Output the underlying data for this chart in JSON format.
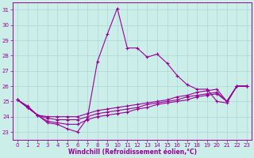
{
  "xlabel": "Windchill (Refroidissement éolien,°C)",
  "background_color": "#cceee8",
  "line_color": "#990099",
  "grid_color": "#aad8d8",
  "xlim": [
    -0.5,
    23.5
  ],
  "ylim": [
    22.5,
    31.5
  ],
  "yticks": [
    23,
    24,
    25,
    26,
    27,
    28,
    29,
    30,
    31
  ],
  "xticks": [
    0,
    1,
    2,
    3,
    4,
    5,
    6,
    7,
    8,
    9,
    10,
    11,
    12,
    13,
    14,
    15,
    16,
    17,
    18,
    19,
    20,
    21,
    22,
    23
  ],
  "series": [
    [
      25.1,
      24.7,
      24.1,
      23.6,
      23.5,
      23.2,
      23.0,
      23.9,
      27.6,
      29.4,
      31.1,
      28.5,
      28.5,
      27.9,
      28.1,
      27.5,
      26.7,
      26.1,
      25.8,
      25.8,
      25.0,
      24.9,
      26.0,
      26.0
    ],
    [
      25.1,
      24.6,
      24.1,
      24.0,
      24.0,
      24.0,
      24.0,
      24.2,
      24.4,
      24.5,
      24.6,
      24.7,
      24.8,
      24.9,
      25.0,
      25.1,
      25.3,
      25.4,
      25.6,
      25.7,
      25.8,
      25.0,
      26.0,
      26.0
    ],
    [
      25.1,
      24.6,
      24.1,
      23.9,
      23.8,
      23.8,
      23.8,
      24.0,
      24.2,
      24.3,
      24.4,
      24.5,
      24.6,
      24.8,
      24.9,
      25.0,
      25.1,
      25.3,
      25.4,
      25.5,
      25.6,
      25.0,
      26.0,
      26.0
    ],
    [
      25.1,
      24.6,
      24.1,
      23.7,
      23.6,
      23.5,
      23.5,
      23.8,
      24.0,
      24.1,
      24.2,
      24.3,
      24.5,
      24.6,
      24.8,
      24.9,
      25.0,
      25.1,
      25.3,
      25.4,
      25.5,
      25.0,
      26.0,
      26.0
    ]
  ]
}
